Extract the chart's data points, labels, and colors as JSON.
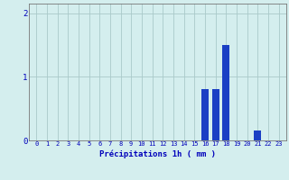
{
  "categories": [
    0,
    1,
    2,
    3,
    4,
    5,
    6,
    7,
    8,
    9,
    10,
    11,
    12,
    13,
    14,
    15,
    16,
    17,
    18,
    19,
    20,
    21,
    22,
    23
  ],
  "values": [
    0,
    0,
    0,
    0,
    0,
    0,
    0,
    0,
    0,
    0,
    0,
    0,
    0,
    0,
    0,
    0,
    0.8,
    0.8,
    1.5,
    0,
    0,
    0.15,
    0,
    0
  ],
  "bar_color": "#1a3fc4",
  "background_color": "#d4eeee",
  "grid_color": "#aacaca",
  "xlabel": "Précipitations 1h ( mm )",
  "xlabel_color": "#0000bb",
  "xlabel_fontsize": 6.5,
  "tick_color": "#0000bb",
  "tick_fontsize": 5.0,
  "ytick_fontsize": 6.5,
  "ylim": [
    0,
    2.15
  ],
  "yticks": [
    0,
    1,
    2
  ],
  "spine_color": "#777777"
}
